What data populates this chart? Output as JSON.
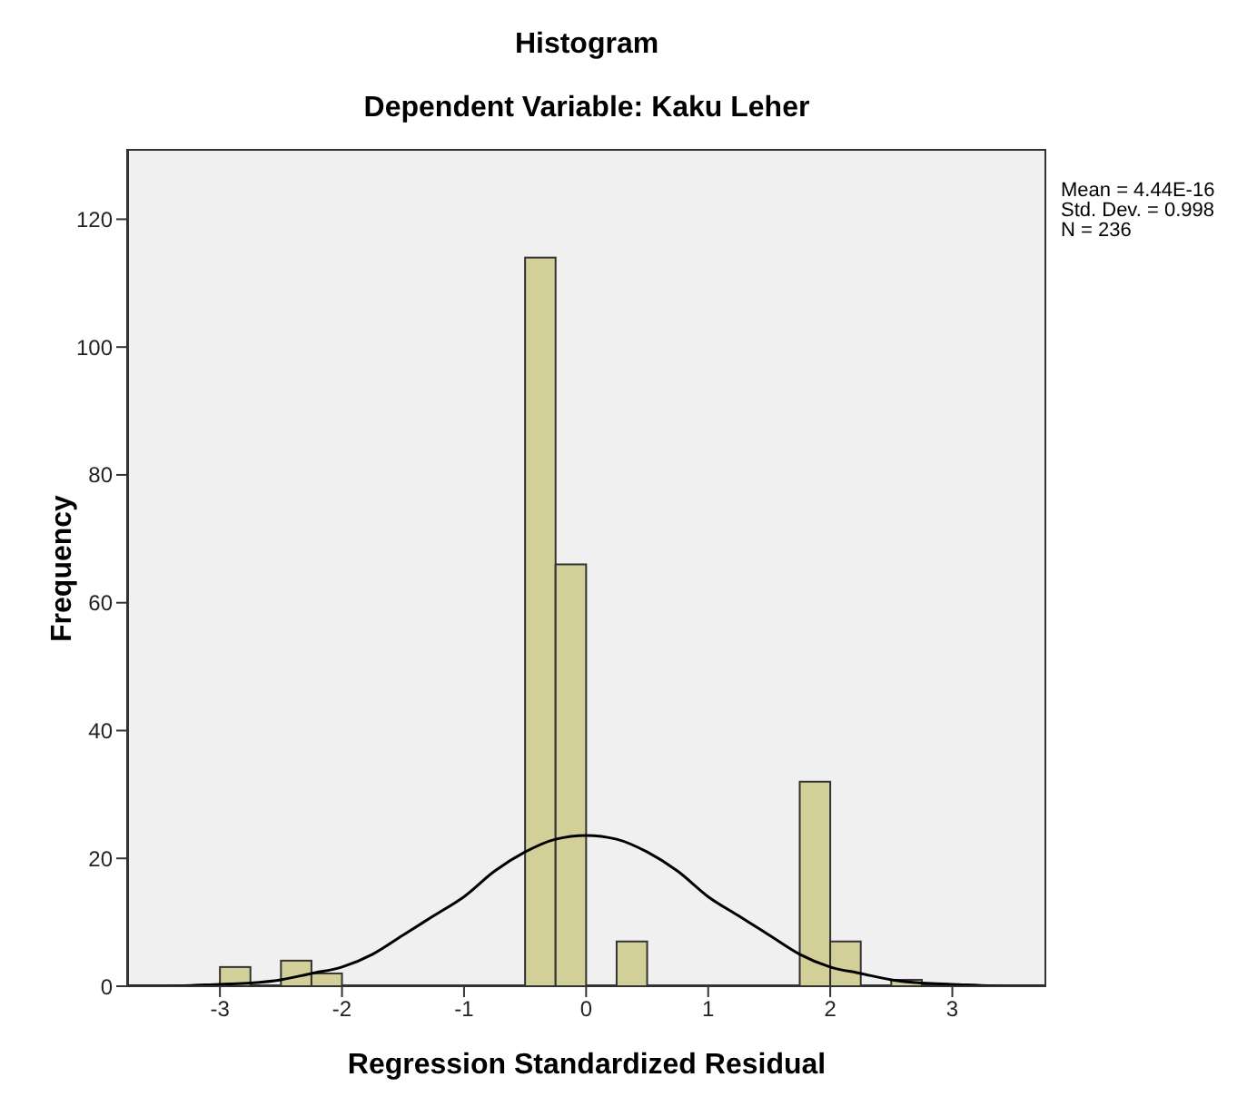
{
  "chart_data": {
    "type": "histogram",
    "title": "Histogram",
    "subtitle": "Dependent Variable: Kaku Leher",
    "xlabel": "Regression Standardized Residual",
    "ylabel": "Frequency",
    "annotations": [
      "Mean = 4.44E-16",
      "Std. Dev. = 0.998",
      "N = 236"
    ],
    "bins": [
      -3.0,
      -2.75,
      -2.5,
      -2.25,
      -2.0,
      -1.75,
      -1.5,
      -1.25,
      -1.0,
      -0.75,
      -0.5,
      -0.25,
      0.0,
      0.25,
      0.5,
      0.75,
      1.0,
      1.25,
      1.5,
      1.75,
      2.0,
      2.25,
      2.5,
      2.75
    ],
    "values": [
      3,
      0,
      4,
      2,
      0,
      0,
      0,
      0,
      0,
      0,
      114,
      66,
      0,
      7,
      0,
      0,
      0,
      0,
      0,
      32,
      7,
      0,
      1
    ],
    "color": "#d3cf98",
    "series": [
      {
        "type": "line",
        "color": "#000000",
        "x": [
          -3.75,
          -3.5,
          -3.0,
          -2.75,
          -2.5,
          -2.25,
          -2.0,
          -1.75,
          -1.5,
          -1.25,
          -1.0,
          -0.75,
          -0.5,
          -0.25,
          0,
          0.25,
          0.5,
          0.75,
          1.0,
          1.25,
          1.5,
          1.75,
          2.0,
          2.25,
          2.5,
          2.75,
          3.0,
          3.5,
          3.75
        ],
        "values": [
          0,
          0,
          0.3,
          0.5,
          1,
          2,
          3,
          5,
          8,
          11,
          14,
          18,
          21,
          23,
          23.6,
          23,
          21,
          18,
          14,
          11,
          8,
          5,
          3,
          2,
          1,
          0.5,
          0.3,
          0,
          0
        ]
      }
    ],
    "xlim": [
      -3.76,
      3.77
    ],
    "xticks": [
      -3,
      -2,
      -1,
      0,
      1,
      2,
      3
    ],
    "ylim": [
      0,
      131
    ],
    "yticks": [
      0,
      20,
      40,
      60,
      80,
      100,
      120
    ],
    "grid": false,
    "legend": false
  }
}
